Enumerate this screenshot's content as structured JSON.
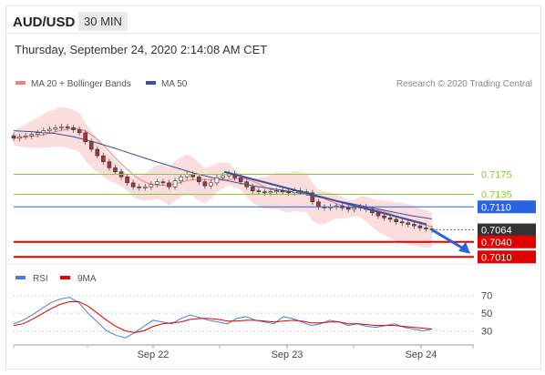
{
  "header": {
    "pair": "AUD/USD",
    "timeframe": "30 MIN"
  },
  "date_line": "Thursday, September 24, 2020 2:14:08 AM CET",
  "legend": {
    "bb_label": "MA 20 + Bollinger Bands",
    "ma50_label": "MA 50",
    "credit": "Research © 2020 Trading Central",
    "rsi_label": "RSI",
    "ma9_label": "9MA"
  },
  "colors": {
    "candle_up": "#ffffff",
    "candle_down": "#a33a3a",
    "bollinger_fill": "#fbd5d5",
    "ma20": "#f08080",
    "ma50": "#3b4fa0",
    "support_level": "#e00000",
    "pivot_level": "#2a63e0",
    "resistance_level": "#8cc63f",
    "last_price": "#333333",
    "rsi": "#4a7be0",
    "rsi_ma": "#e00000"
  },
  "chart_data": [
    {
      "type": "candlestick",
      "title": "AUD/USD 30 MIN",
      "ylim": [
        0.7005,
        0.7305
      ],
      "x": [
        "Sep 22",
        "Sep 23",
        "Sep 24"
      ],
      "levels": [
        {
          "value": 0.7175,
          "label": "0.7175",
          "kind": "resistance"
        },
        {
          "value": 0.7135,
          "label": "0.7135",
          "kind": "resistance"
        },
        {
          "value": 0.711,
          "label": "0.7110",
          "kind": "pivot"
        },
        {
          "value": 0.7064,
          "label": "0.7064",
          "kind": "last_price"
        },
        {
          "value": 0.704,
          "label": "0.7040",
          "kind": "support"
        },
        {
          "value": 0.701,
          "label": "0.7010",
          "kind": "support"
        }
      ],
      "close_series": [
        0.7247,
        0.725,
        0.7252,
        0.7255,
        0.7258,
        0.7262,
        0.7265,
        0.7268,
        0.727,
        0.7268,
        0.7264,
        0.7258,
        0.724,
        0.7225,
        0.7212,
        0.72,
        0.7188,
        0.718,
        0.717,
        0.7158,
        0.715,
        0.7148,
        0.715,
        0.7155,
        0.716,
        0.7158,
        0.715,
        0.7162,
        0.717,
        0.7175,
        0.717,
        0.716,
        0.7152,
        0.7158,
        0.7168,
        0.7172,
        0.7176,
        0.7168,
        0.716,
        0.715,
        0.7142,
        0.714,
        0.7138,
        0.714,
        0.7142,
        0.714,
        0.7138,
        0.7142,
        0.714,
        0.7138,
        0.712,
        0.711,
        0.7108,
        0.711,
        0.7112,
        0.7108,
        0.7105,
        0.7108,
        0.711,
        0.7105,
        0.7098,
        0.7092,
        0.7088,
        0.7085,
        0.708,
        0.7078,
        0.7075,
        0.7072,
        0.7068,
        0.7066,
        0.7064
      ],
      "ma50": [
        0.7262,
        0.726,
        0.7257,
        0.725,
        0.724,
        0.7228,
        0.7215,
        0.7202,
        0.719,
        0.7178,
        0.7168,
        0.716,
        0.7152,
        0.7146,
        0.714,
        0.7132,
        0.7124,
        0.7116,
        0.7108,
        0.71,
        0.7092,
        0.7086
      ],
      "trendline": [
        {
          "x": "Sep 23 start",
          "y": 0.718
        },
        {
          "x": "Sep 24",
          "y": 0.7075
        }
      ],
      "projection": [
        {
          "y": 0.7064
        },
        {
          "y": 0.702
        }
      ]
    },
    {
      "type": "line",
      "title": "RSI",
      "ylim": [
        15,
        80
      ],
      "yticks": [
        30,
        50,
        70
      ],
      "series": [
        {
          "name": "RSI",
          "values": [
            38,
            42,
            48,
            55,
            62,
            66,
            68,
            62,
            50,
            40,
            30,
            25,
            22,
            28,
            35,
            42,
            40,
            38,
            44,
            48,
            45,
            42,
            40,
            38,
            44,
            46,
            42,
            40,
            38,
            46,
            44,
            40,
            36,
            38,
            42,
            40,
            36,
            38,
            35,
            34,
            36,
            38,
            34,
            32,
            30,
            32
          ]
        },
        {
          "name": "9MA",
          "values": [
            36,
            38,
            43,
            49,
            55,
            60,
            63,
            63,
            58,
            50,
            42,
            35,
            30,
            28,
            30,
            35,
            38,
            39,
            40,
            43,
            44,
            44,
            43,
            41,
            41,
            42,
            42,
            41,
            40,
            41,
            42,
            41,
            39,
            39,
            40,
            40,
            38,
            38,
            37,
            36,
            36,
            36,
            35,
            34,
            33,
            32
          ]
        }
      ]
    }
  ],
  "x_axis_labels": [
    "Sep 22",
    "Sep 23",
    "Sep 24"
  ]
}
